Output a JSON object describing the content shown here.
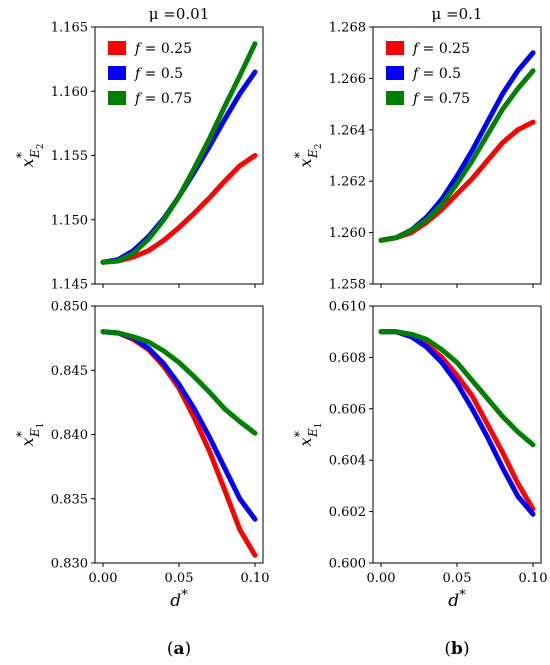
{
  "chart_data": [
    {
      "type": "line",
      "title": "μ =0.01",
      "ylabel_base": "x",
      "ylabel_sup": "*",
      "ylabel_sub": "E",
      "ylabel_subsub": "2",
      "xlim": [
        0,
        0.1
      ],
      "ylim": [
        1.145,
        1.165
      ],
      "yticks": [
        "1.145",
        "1.150",
        "1.155",
        "1.160",
        "1.165"
      ],
      "xticks": [],
      "legend": "top-left",
      "x": [
        0,
        0.01,
        0.02,
        0.03,
        0.04,
        0.05,
        0.06,
        0.07,
        0.08,
        0.09,
        0.1
      ],
      "series": [
        {
          "name": "f = 0.25",
          "color": "#ff0000",
          "values": [
            1.1467,
            1.1468,
            1.1471,
            1.1476,
            1.1484,
            1.1494,
            1.1505,
            1.1517,
            1.153,
            1.1542,
            1.155
          ]
        },
        {
          "name": "f = 0.5",
          "color": "#0000ff",
          "values": [
            1.1467,
            1.1469,
            1.1476,
            1.1487,
            1.1501,
            1.1518,
            1.1537,
            1.1557,
            1.1578,
            1.1598,
            1.1615
          ]
        },
        {
          "name": "f = 0.75",
          "color": "#008000",
          "values": [
            1.1467,
            1.1468,
            1.1474,
            1.1485,
            1.15,
            1.1518,
            1.154,
            1.1563,
            1.1588,
            1.1612,
            1.1637
          ]
        }
      ]
    },
    {
      "type": "line",
      "title": "μ =0.1",
      "ylabel_base": "x",
      "ylabel_sup": "*",
      "ylabel_sub": "E",
      "ylabel_subsub": "2",
      "xlim": [
        0,
        0.1
      ],
      "ylim": [
        1.258,
        1.268
      ],
      "yticks": [
        "1.258",
        "1.260",
        "1.262",
        "1.264",
        "1.266",
        "1.268"
      ],
      "xticks": [],
      "legend": "top-left",
      "x": [
        0,
        0.01,
        0.02,
        0.03,
        0.04,
        0.05,
        0.06,
        0.07,
        0.08,
        0.09,
        0.1
      ],
      "series": [
        {
          "name": "f = 0.25",
          "color": "#ff0000",
          "values": [
            1.2597,
            1.2598,
            1.26,
            1.2604,
            1.2609,
            1.2615,
            1.2621,
            1.2628,
            1.2635,
            1.264,
            1.2643
          ]
        },
        {
          "name": "f = 0.5",
          "color": "#0000ff",
          "values": [
            1.2597,
            1.2598,
            1.2601,
            1.2606,
            1.2613,
            1.2622,
            1.2632,
            1.2643,
            1.2654,
            1.2663,
            1.267
          ]
        },
        {
          "name": "f = 0.75",
          "color": "#008000",
          "values": [
            1.2597,
            1.2598,
            1.2601,
            1.2605,
            1.2611,
            1.2619,
            1.2628,
            1.2638,
            1.2648,
            1.2656,
            1.2663
          ]
        }
      ]
    },
    {
      "type": "line",
      "title": "",
      "ylabel_base": "x",
      "ylabel_sup": "*",
      "ylabel_sub": "E",
      "ylabel_subsub": "1",
      "xlabel_base": "d",
      "xlabel_sup": "*",
      "xlim": [
        0,
        0.1
      ],
      "ylim": [
        0.83,
        0.85
      ],
      "yticks": [
        "0.830",
        "0.835",
        "0.840",
        "0.845",
        "0.850"
      ],
      "xticks": [
        "0.00",
        "0.05",
        "0.10"
      ],
      "x": [
        0,
        0.01,
        0.02,
        0.03,
        0.04,
        0.05,
        0.06,
        0.07,
        0.08,
        0.09,
        0.1
      ],
      "series": [
        {
          "name": "f = 0.25",
          "color": "#ff0000",
          "values": [
            0.848,
            0.8479,
            0.8474,
            0.8466,
            0.8453,
            0.8436,
            0.8413,
            0.8387,
            0.8357,
            0.8326,
            0.8306
          ]
        },
        {
          "name": "f = 0.5",
          "color": "#0000ff",
          "values": [
            0.848,
            0.8479,
            0.8475,
            0.8467,
            0.8455,
            0.8439,
            0.842,
            0.8398,
            0.8374,
            0.835,
            0.8334
          ]
        },
        {
          "name": "f = 0.75",
          "color": "#008000",
          "values": [
            0.848,
            0.8479,
            0.8476,
            0.8472,
            0.8465,
            0.8456,
            0.8445,
            0.8433,
            0.842,
            0.841,
            0.8401
          ]
        }
      ]
    },
    {
      "type": "line",
      "title": "",
      "ylabel_base": "x",
      "ylabel_sup": "*",
      "ylabel_sub": "E",
      "ylabel_subsub": "1",
      "xlabel_base": "d",
      "xlabel_sup": "*",
      "xlim": [
        0,
        0.1
      ],
      "ylim": [
        0.6,
        0.61
      ],
      "yticks": [
        "0.600",
        "0.602",
        "0.604",
        "0.606",
        "0.608",
        "0.610"
      ],
      "xticks": [
        "0.00",
        "0.05",
        "0.10"
      ],
      "x": [
        0,
        0.01,
        0.02,
        0.03,
        0.04,
        0.05,
        0.06,
        0.07,
        0.08,
        0.09,
        0.1
      ],
      "series": [
        {
          "name": "f = 0.25",
          "color": "#ff0000",
          "values": [
            0.609,
            0.609,
            0.6088,
            0.6085,
            0.608,
            0.6073,
            0.6065,
            0.6054,
            0.6043,
            0.6031,
            0.6021
          ]
        },
        {
          "name": "f = 0.5",
          "color": "#0000ff",
          "values": [
            0.609,
            0.609,
            0.6088,
            0.6084,
            0.6078,
            0.607,
            0.606,
            0.6049,
            0.6037,
            0.6026,
            0.6019
          ]
        },
        {
          "name": "f = 0.75",
          "color": "#008000",
          "values": [
            0.609,
            0.609,
            0.6089,
            0.6087,
            0.6083,
            0.6078,
            0.6071,
            0.6064,
            0.6057,
            0.6051,
            0.6046
          ]
        }
      ]
    }
  ],
  "captions": [
    "a",
    "b"
  ]
}
